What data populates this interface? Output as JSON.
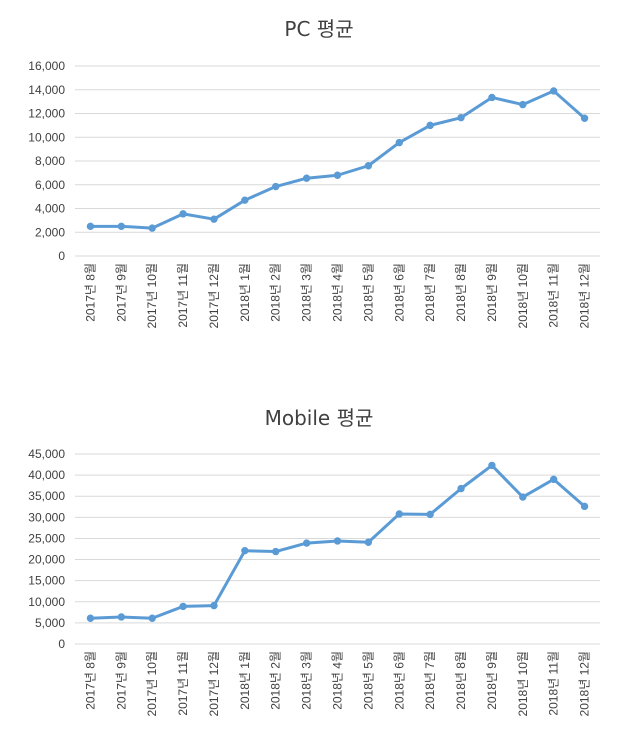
{
  "chart_data": [
    {
      "type": "line",
      "title": "PC 평균",
      "categories": [
        "2017년 8월",
        "2017년 9월",
        "2017년 10월",
        "2017년 11월",
        "2017년 12월",
        "2018년 1월",
        "2018년 2월",
        "2018년 3월",
        "2018년 4월",
        "2018년 5월",
        "2018년 6월",
        "2018년 7월",
        "2018년 8월",
        "2018년 9월",
        "2018년 10월",
        "2018년 11월",
        "2018년 12월"
      ],
      "values": [
        2500,
        2500,
        2350,
        3550,
        3100,
        4700,
        5850,
        6550,
        6800,
        7600,
        9550,
        11000,
        11650,
        13350,
        12750,
        13900,
        11600
      ],
      "ylim": [
        0,
        16000
      ],
      "yticks": [
        "0",
        "2,000",
        "4,000",
        "6,000",
        "8,000",
        "10,000",
        "12,000",
        "14,000",
        "16,000"
      ],
      "color": "#5b9bd5",
      "grid": true
    },
    {
      "type": "line",
      "title": "Mobile 평균",
      "categories": [
        "2017년 8월",
        "2017년 9월",
        "2017년 10월",
        "2017년 11월",
        "2017년 12월",
        "2018년 1월",
        "2018년 2월",
        "2018년 3월",
        "2018년 4월",
        "2018년 5월",
        "2018년 6월",
        "2018년 7월",
        "2018년 8월",
        "2018년 9월",
        "2018년 10월",
        "2018년 11월",
        "2018년 12월"
      ],
      "values": [
        6100,
        6400,
        6100,
        8900,
        9100,
        22100,
        21900,
        23900,
        24400,
        24100,
        30800,
        30700,
        36800,
        42300,
        34800,
        39000,
        32600
      ],
      "ylim": [
        0,
        45000
      ],
      "yticks": [
        "0",
        "5,000",
        "10,000",
        "15,000",
        "20,000",
        "25,000",
        "30,000",
        "35,000",
        "40,000",
        "45,000"
      ],
      "color": "#5b9bd5",
      "grid": true
    }
  ]
}
